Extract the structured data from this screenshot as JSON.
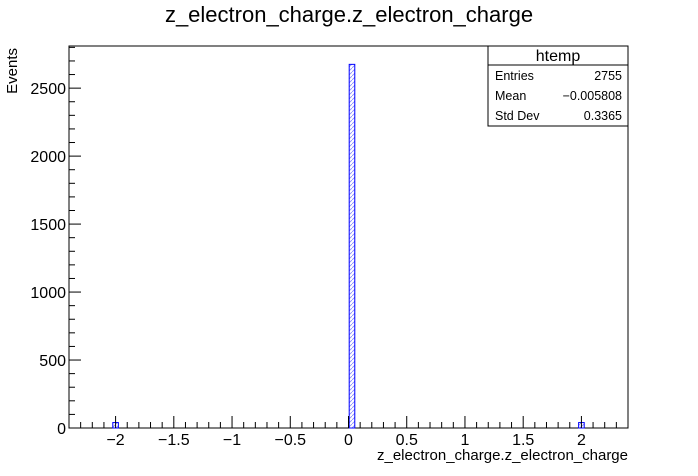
{
  "chart_data": {
    "type": "bar",
    "title": "z_electron_charge.z_electron_charge",
    "xlabel": "z_electron_charge.z_electron_charge",
    "ylabel": "Events",
    "xlim": [
      -2.4,
      2.4
    ],
    "ylim": [
      0,
      2810
    ],
    "x_ticks": [
      {
        "value": -2,
        "label": "−2"
      },
      {
        "value": -1.5,
        "label": "−1.5"
      },
      {
        "value": -1,
        "label": "−1"
      },
      {
        "value": -0.5,
        "label": "−0.5"
      },
      {
        "value": 0,
        "label": "0"
      },
      {
        "value": 0.5,
        "label": "0.5"
      },
      {
        "value": 1,
        "label": "1"
      },
      {
        "value": 1.5,
        "label": "1.5"
      },
      {
        "value": 2,
        "label": "2"
      }
    ],
    "y_ticks": [
      {
        "value": 0,
        "label": "0"
      },
      {
        "value": 500,
        "label": "500"
      },
      {
        "value": 1000,
        "label": "1000"
      },
      {
        "value": 1500,
        "label": "1500"
      },
      {
        "value": 2000,
        "label": "2000"
      },
      {
        "value": 2500,
        "label": "2500"
      }
    ],
    "bin_width": 0.048,
    "bins": [
      {
        "x": -2,
        "count": 40
      },
      {
        "x": 0.03,
        "count": 2675
      },
      {
        "x": 2,
        "count": 40
      }
    ],
    "bar_color": "#0000ff",
    "stats_box": {
      "title": "htemp",
      "rows": [
        {
          "label": "Entries",
          "value": "2755"
        },
        {
          "label": "Mean",
          "value": "−0.005808"
        },
        {
          "label": "Std Dev",
          "value": "0.3365"
        }
      ]
    },
    "grid": false,
    "legend": "top-right"
  }
}
